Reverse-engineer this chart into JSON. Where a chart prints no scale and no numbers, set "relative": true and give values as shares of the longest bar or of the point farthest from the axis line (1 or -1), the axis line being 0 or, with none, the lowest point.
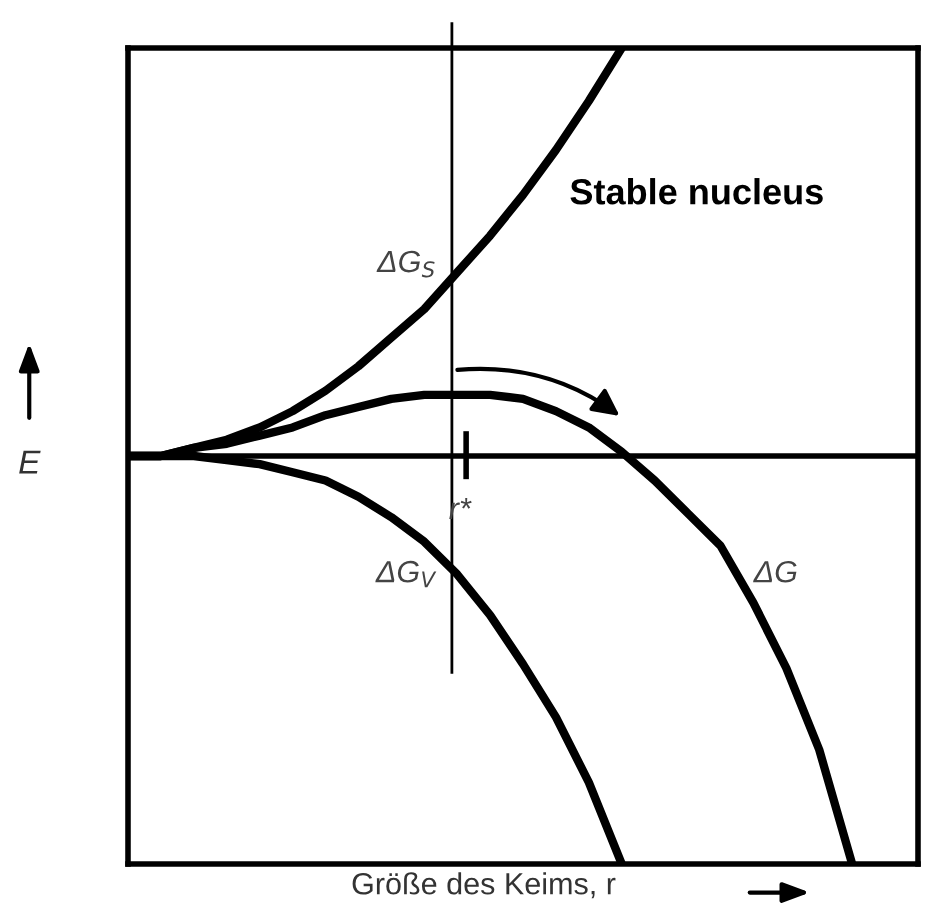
{
  "chart_data": {
    "type": "line",
    "relative": true,
    "xlabel": "Größe des Keims, r",
    "ylabel": "E",
    "categories": [
      null,
      null,
      null,
      null,
      null,
      null,
      null,
      null,
      null,
      null,
      null,
      null,
      null,
      null,
      null,
      null,
      null,
      null,
      null,
      null,
      null,
      null,
      null,
      null,
      null
    ],
    "series": [
      {
        "name": "ΔG$_{S}$",
        "color": "#000000",
        "values": [
          0,
          0,
          0.02,
          0.04,
          0.07,
          0.11,
          0.16,
          0.22,
          0.29,
          0.36,
          0.45,
          0.54,
          0.64,
          0.75,
          0.87,
          1,
          null,
          null,
          null,
          null,
          null,
          null,
          null,
          null,
          null
        ]
      },
      {
        "name": "ΔG$_{V}$",
        "color": "#000000",
        "values": [
          0,
          0,
          0,
          -0.01,
          -0.02,
          -0.04,
          -0.06,
          -0.1,
          -0.15,
          -0.21,
          -0.29,
          -0.39,
          -0.51,
          -0.64,
          -0.8,
          -1,
          null,
          null,
          null,
          null,
          null,
          null,
          null,
          null,
          null
        ]
      },
      {
        "name": "ΔG",
        "color": "#000000",
        "values": [
          0,
          0,
          0.02,
          0.03,
          0.05,
          0.07,
          0.1,
          0.12,
          0.14,
          0.15,
          0.15,
          0.15,
          0.14,
          0.11,
          0.07,
          0.01,
          -0.06,
          -0.14,
          -0.22,
          -0.36,
          -0.52,
          -0.72,
          -1,
          null,
          null
        ]
      }
    ],
    "annotations": [
      "r*",
      "Stable nucleus"
    ],
    "marker": "none",
    "line_style": "solid",
    "legend": false
  }
}
